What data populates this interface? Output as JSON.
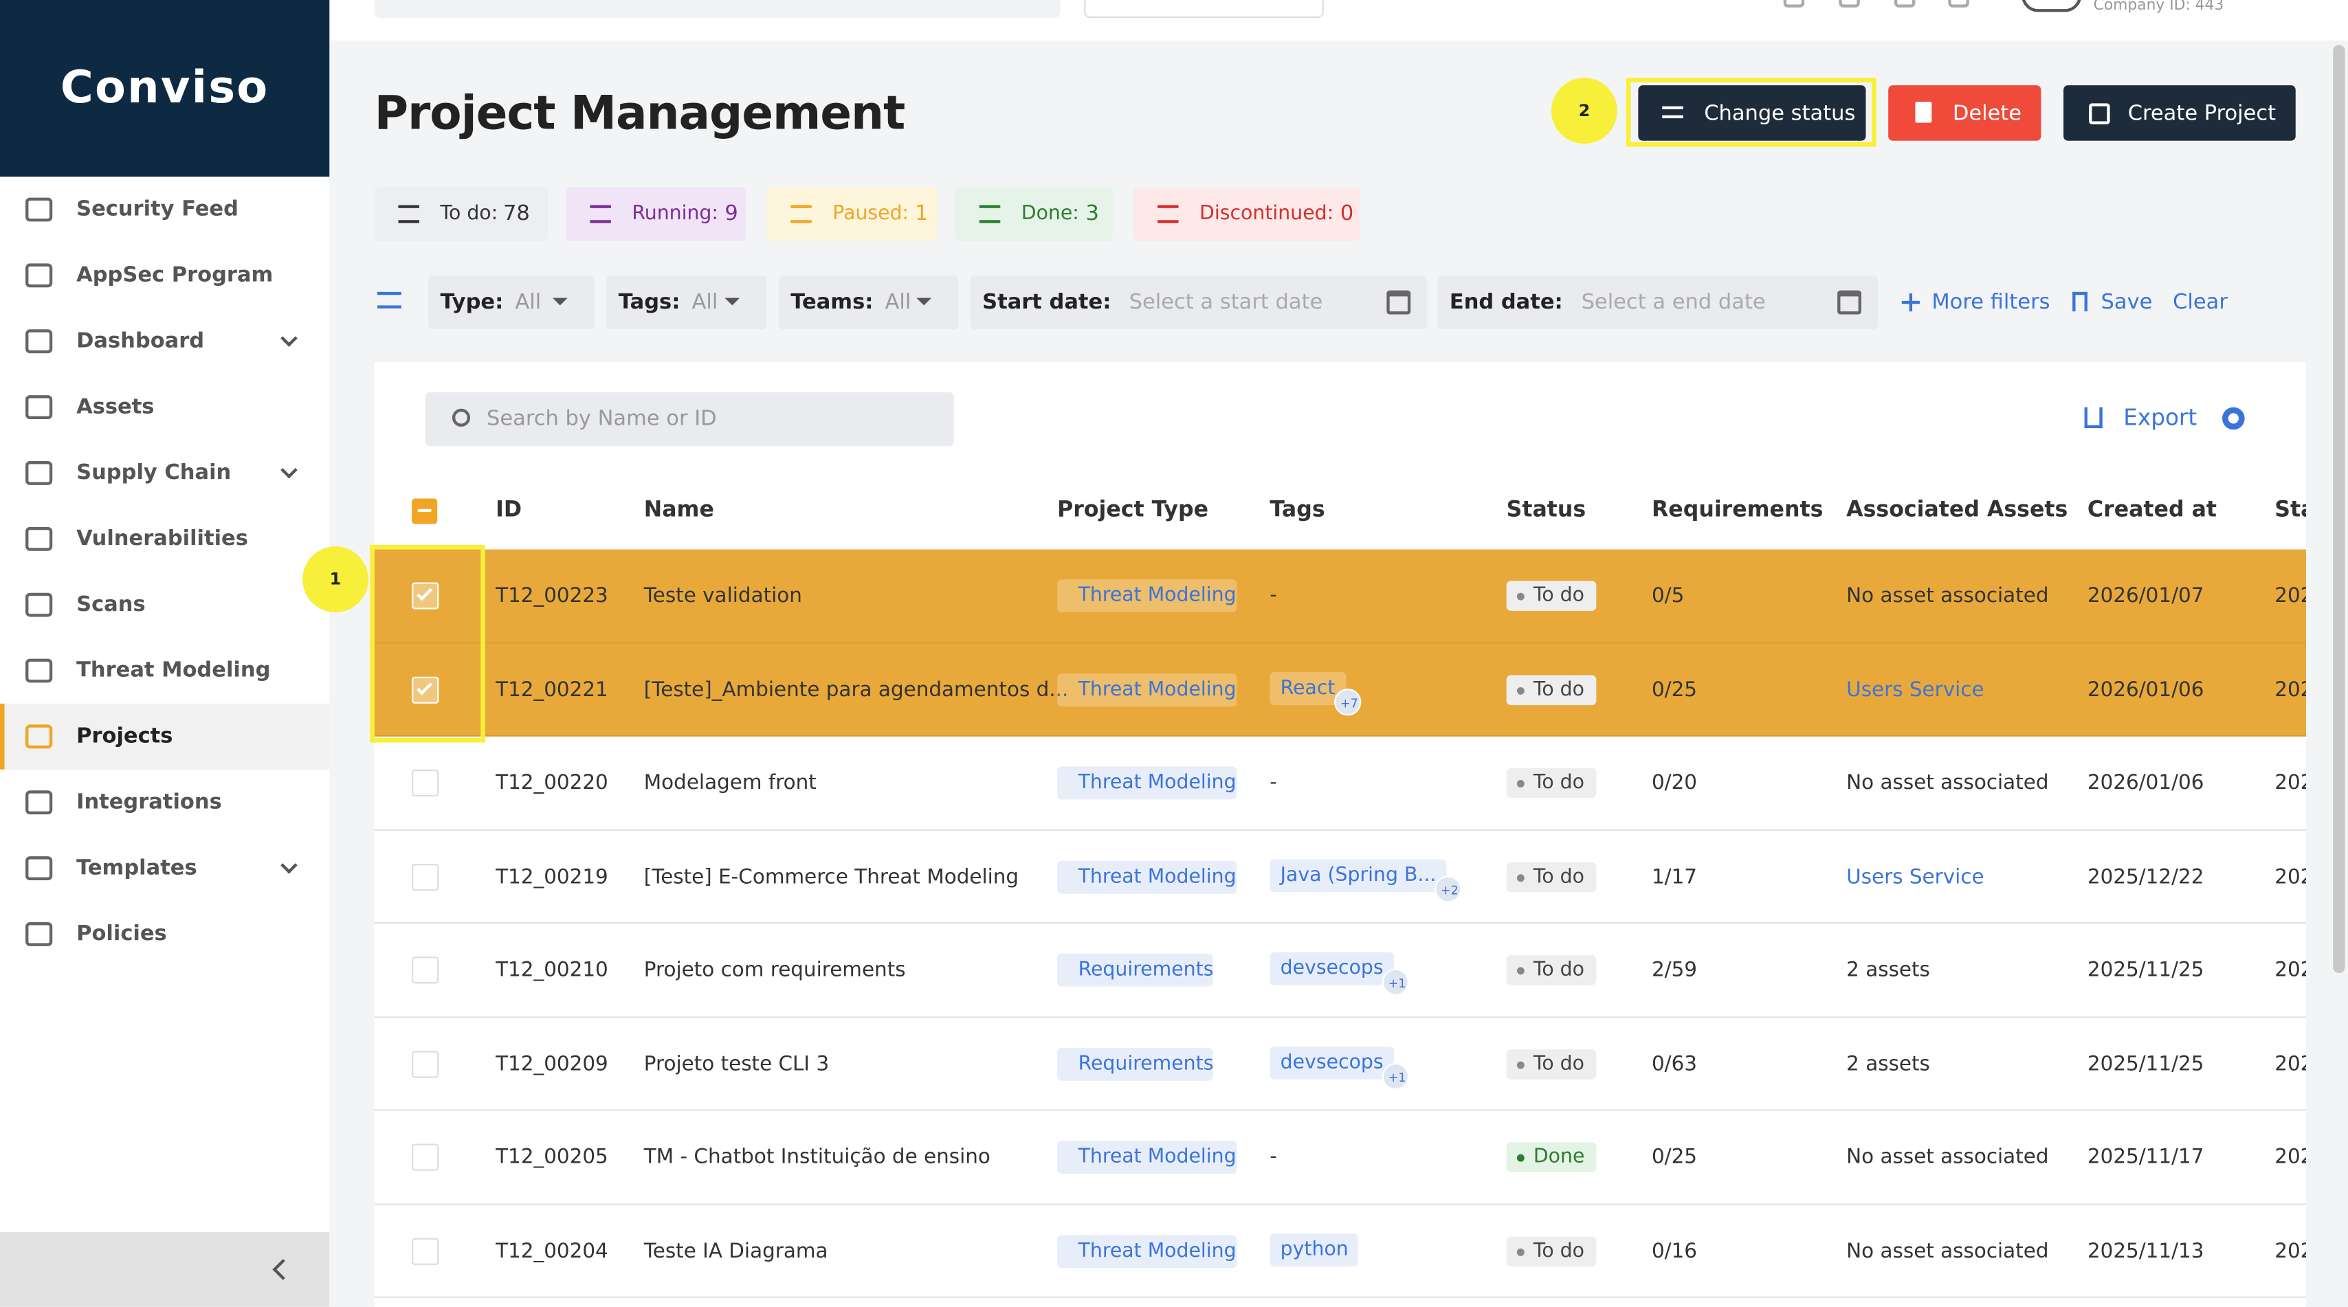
{
  "topbar": {
    "company": "Company ID: 443"
  },
  "sidebar": {
    "logo": "Conviso",
    "items": [
      {
        "label": "Security Feed"
      },
      {
        "label": "AppSec Program"
      },
      {
        "label": "Dashboard",
        "expandable": true
      },
      {
        "label": "Assets"
      },
      {
        "label": "Supply Chain",
        "expandable": true
      },
      {
        "label": "Vulnerabilities"
      },
      {
        "label": "Scans"
      },
      {
        "label": "Threat Modeling"
      },
      {
        "label": "Projects",
        "active": true
      },
      {
        "label": "Integrations"
      },
      {
        "label": "Templates",
        "expandable": true
      },
      {
        "label": "Policies"
      }
    ]
  },
  "header": {
    "title": "Project Management",
    "step_2": "2",
    "change_status": "Change status",
    "delete": "Delete",
    "create": "Create Project"
  },
  "status_counts": [
    {
      "label": "To do:",
      "count": 78
    },
    {
      "label": "Running:",
      "count": 9
    },
    {
      "label": "Paused:",
      "count": 1
    },
    {
      "label": "Done:",
      "count": 3
    },
    {
      "label": "Discontinued:",
      "count": 0
    }
  ],
  "filters": {
    "selects": [
      {
        "label": "Type:",
        "value": "All"
      },
      {
        "label": "Tags:",
        "value": "All"
      },
      {
        "label": "Teams:",
        "value": "All"
      }
    ],
    "dates": [
      {
        "label": "Start date:",
        "placeholder": "Select a start date"
      },
      {
        "label": "End date:",
        "placeholder": "Select a end date"
      }
    ],
    "more": "More filters",
    "save": "Save",
    "clear": "Clear"
  },
  "table": {
    "search": "Search by Name or ID",
    "export": "Export",
    "step_1": "1",
    "columns": [
      "ID",
      "Name",
      "Project Type",
      "Tags",
      "Status",
      "Requirements",
      "Associated Assets",
      "Created at",
      "Sta"
    ],
    "rows": [
      {
        "id": "T12_00223",
        "name": "Teste validation",
        "type": "Threat Modeling",
        "tag": "-",
        "status": "To do",
        "requirements": "0/5",
        "assets": "No asset associated",
        "created": "2026/01/07",
        "extra": "202",
        "selected": true
      },
      {
        "id": "T12_00221",
        "name": "[Teste]_Ambiente para agendamentos d...",
        "type": "Threat Modeling",
        "tag": "React",
        "tag_more": "+7",
        "status": "To do",
        "requirements": "0/25",
        "assets": "Users Service",
        "asset_link": true,
        "created": "2026/01/06",
        "extra": "202",
        "selected": true
      },
      {
        "id": "T12_00220",
        "name": "Modelagem front",
        "type": "Threat Modeling",
        "tag": "-",
        "status": "To do",
        "requirements": "0/20",
        "assets": "No asset associated",
        "created": "2026/01/06",
        "extra": "202"
      },
      {
        "id": "T12_00219",
        "name": "[Teste] E-Commerce Threat Modeling",
        "type": "Threat Modeling",
        "tag": "Java (Spring B...",
        "tag_more": "+2",
        "status": "To do",
        "requirements": "1/17",
        "assets": "Users Service",
        "asset_link": true,
        "created": "2025/12/22",
        "extra": "202"
      },
      {
        "id": "T12_00210",
        "name": "Projeto com requirements",
        "type": "Requirements",
        "tag": "devsecops",
        "tag_more": "+1",
        "status": "To do",
        "requirements": "2/59",
        "assets": "2 assets",
        "created": "2025/11/25",
        "extra": "202"
      },
      {
        "id": "T12_00209",
        "name": "Projeto teste CLI 3",
        "type": "Requirements",
        "tag": "devsecops",
        "tag_more": "+1",
        "status": "To do",
        "requirements": "0/63",
        "assets": "2 assets",
        "created": "2025/11/25",
        "extra": "202"
      },
      {
        "id": "T12_00205",
        "name": "TM - Chatbot Instituição de ensino",
        "type": "Threat Modeling",
        "tag": "-",
        "status": "Done",
        "requirements": "0/25",
        "assets": "No asset associated",
        "created": "2025/11/17",
        "extra": "202"
      },
      {
        "id": "T12_00204",
        "name": "Teste IA Diagrama",
        "type": "Threat Modeling",
        "tag": "python",
        "status": "To do",
        "requirements": "0/16",
        "assets": "No asset associated",
        "created": "2025/11/13",
        "extra": "202"
      }
    ]
  }
}
